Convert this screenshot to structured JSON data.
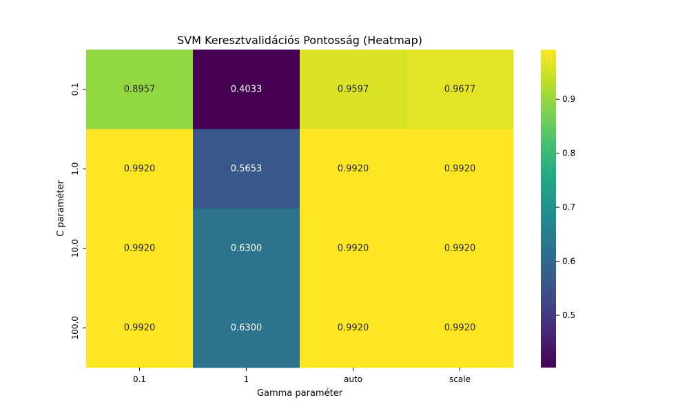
{
  "chart_data": {
    "type": "heatmap",
    "title": "SVM Keresztvalidációs Pontosság (Heatmap)",
    "xlabel": "Gamma paraméter",
    "ylabel": "C paraméter",
    "x_categories": [
      "0.1",
      "1",
      "auto",
      "scale"
    ],
    "y_categories": [
      "0.1",
      "1.0",
      "10.0",
      "100.0"
    ],
    "values": [
      [
        0.8957,
        0.4033,
        0.9597,
        0.9677
      ],
      [
        0.992,
        0.5653,
        0.992,
        0.992
      ],
      [
        0.992,
        0.63,
        0.992,
        0.992
      ],
      [
        0.992,
        0.63,
        0.992,
        0.992
      ]
    ],
    "value_labels": [
      [
        "0.8957",
        "0.4033",
        "0.9597",
        "0.9677"
      ],
      [
        "0.9920",
        "0.5653",
        "0.9920",
        "0.9920"
      ],
      [
        "0.9920",
        "0.6300",
        "0.9920",
        "0.9920"
      ],
      [
        "0.9920",
        "0.6300",
        "0.9920",
        "0.9920"
      ]
    ],
    "colormap": "viridis",
    "color_range": [
      0.4033,
      0.992
    ],
    "colorbar_ticks": [
      "0.5",
      "0.6",
      "0.7",
      "0.8",
      "0.9"
    ],
    "colorbar_tick_values": [
      0.5,
      0.6,
      0.7,
      0.8,
      0.9
    ],
    "legend": "colorbar-right"
  }
}
